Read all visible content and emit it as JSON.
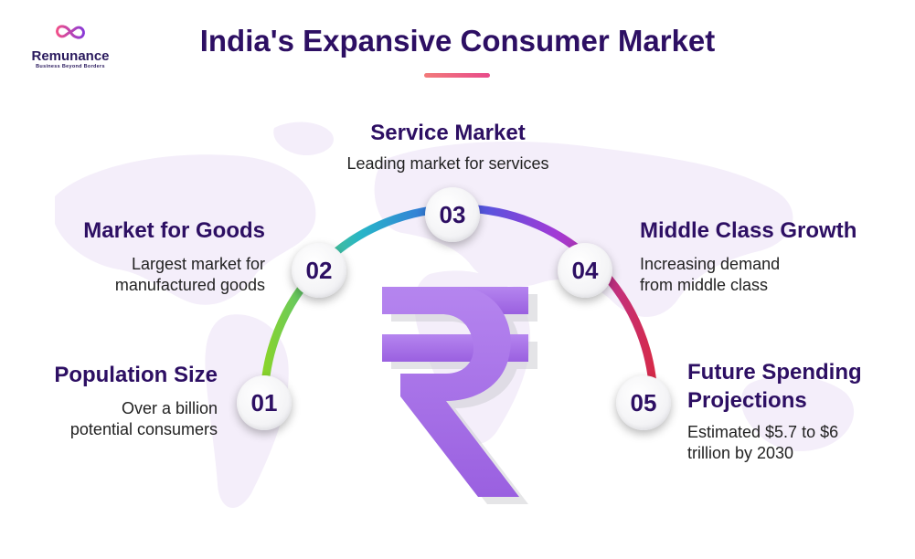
{
  "logo": {
    "name": "Remunance",
    "tagline": "Business Beyond Borders"
  },
  "title": "India's Expansive Consumer Market",
  "items": [
    {
      "number": "01",
      "heading": "Population Size",
      "desc_line1": "Over a billion",
      "desc_line2": "potential consumers"
    },
    {
      "number": "02",
      "heading": "Market for Goods",
      "desc_line1": "Largest market for",
      "desc_line2": "manufactured goods"
    },
    {
      "number": "03",
      "heading": "Service Market",
      "desc_line1": "Leading market for services"
    },
    {
      "number": "04",
      "heading": "Middle Class Growth",
      "desc_line1": "Increasing demand",
      "desc_line2": "from middle class"
    },
    {
      "number": "05",
      "heading_line1": "Future Spending",
      "heading_line2": "Projections",
      "desc_line1": "Estimated $5.7 to $6",
      "desc_line2": "trillion by 2030"
    }
  ],
  "colors": {
    "title": "#2d0f63",
    "arc_gradient": [
      "#8ad42a",
      "#27b5c8",
      "#3b5ee0",
      "#a23ad6",
      "#d62a48"
    ],
    "rupee": "#a46ee6"
  },
  "icons": {
    "logo": "infinity-icon",
    "center": "rupee-symbol"
  }
}
